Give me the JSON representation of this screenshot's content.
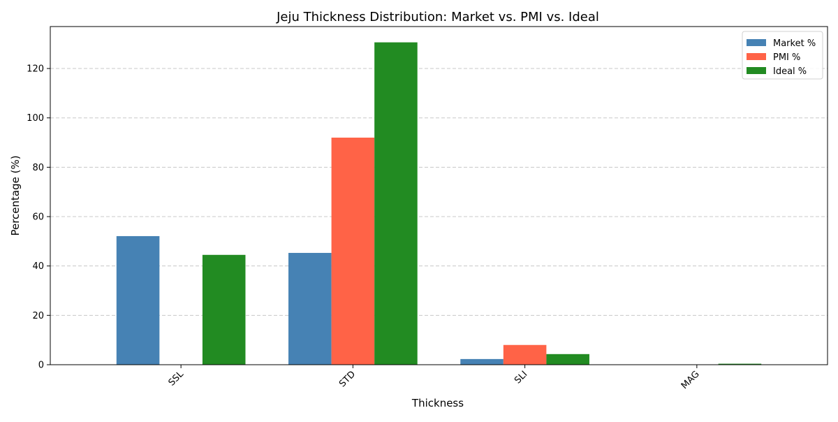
{
  "chart_data": {
    "type": "bar",
    "title": "Jeju Thickness Distribution: Market vs. PMI vs. Ideal",
    "xlabel": "Thickness",
    "ylabel": "Percentage (%)",
    "categories": [
      "SSL",
      "STD",
      "SLI",
      "MAG"
    ],
    "series": [
      {
        "name": "Market %",
        "color": "#4682b4",
        "values": [
          52.1,
          45.3,
          2.3,
          0.0
        ]
      },
      {
        "name": "PMI %",
        "color": "#ff6347",
        "values": [
          0.0,
          92.0,
          8.0,
          0.0
        ]
      },
      {
        "name": "Ideal %",
        "color": "#228b22",
        "values": [
          44.5,
          130.6,
          4.3,
          0.4
        ]
      }
    ],
    "ylim": [
      0,
      137
    ],
    "yticks": [
      0,
      20,
      40,
      60,
      80,
      100,
      120
    ],
    "grid": "y-dashed",
    "legend": "top-right"
  }
}
